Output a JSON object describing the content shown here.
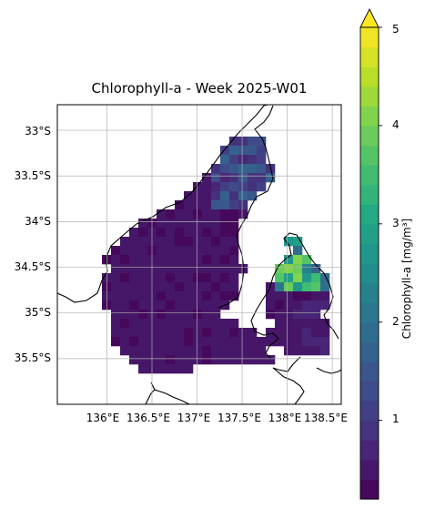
{
  "map": {
    "title": "Chlorophyll-a - Week 2025-W01",
    "lat_ticks": [
      "33°S",
      "33.5°S",
      "34°S",
      "34.5°S",
      "35°S",
      "35.5°S"
    ],
    "lon_ticks": [
      "136°E",
      "136.5°E",
      "137°E",
      "137.5°E",
      "138°E",
      "138.5°E"
    ],
    "extent": {
      "lon_min": 135.45,
      "lon_max": 138.6,
      "lat_max": -32.72,
      "lat_min": -36.0
    },
    "grid_cell_degrees": 0.1
  },
  "colorbar": {
    "label": "Chlorophyll-a [mg/m³]",
    "ticks": [
      "1",
      "2",
      "3",
      "4",
      "5"
    ],
    "min": 0.2,
    "max": 5,
    "extend": "max",
    "colormap": "viridis"
  }
}
